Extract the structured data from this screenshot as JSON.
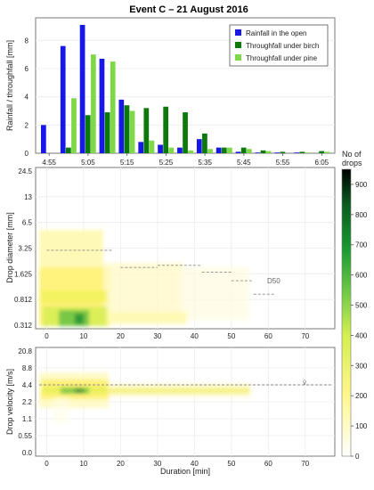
{
  "title": "Event C – 21 August 2016",
  "colors": {
    "rain_open": "#1717e6",
    "tf_birch": "#0b7a0b",
    "tf_pine": "#7fd84a",
    "frame": "#7a7a7a",
    "grid": "#e6e6e6",
    "dashed": "#8a8a8a"
  },
  "chart_data": [
    {
      "type": "bar",
      "ylabel": "Rainfall / throughfall [mm]",
      "ylim": [
        0,
        9.6
      ],
      "yticks": [
        0,
        2,
        4,
        6,
        8
      ],
      "xtick_labels": [
        "4:55",
        "5:05",
        "5:15",
        "5:25",
        "5:35",
        "5:45",
        "5:55",
        "6:05"
      ],
      "categories": [
        "4:55",
        "5:00",
        "5:05",
        "5:10",
        "5:15",
        "5:20",
        "5:25",
        "5:30",
        "5:35",
        "5:40",
        "5:45",
        "5:50",
        "5:55",
        "6:00",
        "6:05"
      ],
      "legend_position": "top-right",
      "series": [
        {
          "name": "Rainfall in the open",
          "color": "#1717e6",
          "values": [
            2.0,
            7.6,
            9.1,
            6.7,
            3.8,
            0.8,
            0.6,
            0.4,
            1.0,
            0.4,
            0.1,
            0.05,
            0.05,
            0.05,
            0.0
          ]
        },
        {
          "name": "Throughfall under birch",
          "color": "#0b7a0b",
          "values": [
            0.0,
            0.4,
            2.7,
            2.9,
            3.4,
            3.2,
            3.3,
            2.9,
            1.4,
            0.4,
            0.4,
            0.2,
            0.1,
            0.1,
            0.15
          ]
        },
        {
          "name": "Throughfall under pine",
          "color": "#7fd84a",
          "values": [
            0.0,
            3.9,
            7.0,
            6.5,
            3.0,
            0.9,
            0.4,
            0.2,
            0.3,
            0.4,
            0.3,
            0.15,
            0.0,
            0.05,
            0.1
          ]
        }
      ]
    },
    {
      "type": "heatmap",
      "xlabel": "Duration [min]",
      "ylabel": "Drop diameter [mm]",
      "xlim": [
        -3,
        78
      ],
      "xticks": [
        0,
        10,
        20,
        30,
        40,
        50,
        60,
        70
      ],
      "yticks": [
        "0.312",
        "0.812",
        "1.625",
        "3.25",
        "6.5",
        "13",
        "24.5"
      ],
      "annotation": "D50",
      "d50_segments": [
        {
          "x": [
            0,
            18
          ],
          "y": 2.6
        },
        {
          "x": [
            20,
            30
          ],
          "y": 1.6
        },
        {
          "x": [
            30,
            42
          ],
          "y": 1.7
        },
        {
          "x": [
            42,
            50
          ],
          "y": 1.4
        },
        {
          "x": [
            50,
            56
          ],
          "y": 1.1
        },
        {
          "x": [
            56,
            62
          ],
          "y": 0.75
        }
      ]
    },
    {
      "type": "heatmap",
      "xlabel": "Duration [min]",
      "ylabel": "Drop velocity [m/s]",
      "xlim": [
        -3,
        78
      ],
      "xticks": [
        0,
        10,
        20,
        30,
        40,
        50,
        60,
        70
      ],
      "yticks": [
        "0.0",
        "0.55",
        "1.1",
        "2.2",
        "4.4",
        "8.8",
        "20.8"
      ],
      "annotation": "v̄",
      "mean_velocity": 4.4
    }
  ],
  "colorbar": {
    "title_line1": "No of",
    "title_line2": "drops",
    "range": [
      0,
      950
    ],
    "ticks": [
      0,
      100,
      200,
      300,
      400,
      500,
      600,
      700,
      800,
      900
    ]
  }
}
